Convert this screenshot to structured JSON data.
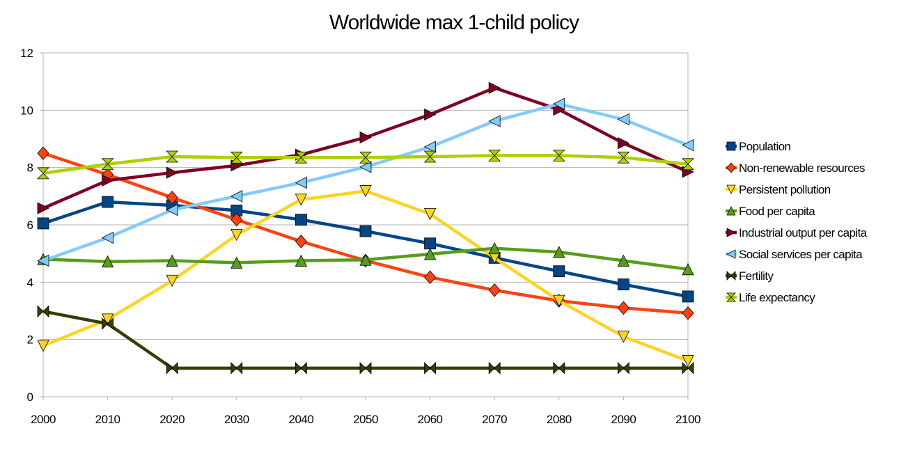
{
  "chart_data": {
    "type": "line",
    "title": "Worldwide max 1-child policy",
    "xlabel": "",
    "ylabel": "",
    "x": [
      2000,
      2010,
      2020,
      2030,
      2040,
      2050,
      2060,
      2070,
      2080,
      2090,
      2100
    ],
    "ylim": [
      0,
      12
    ],
    "yticks": [
      0,
      2,
      4,
      6,
      8,
      10,
      12
    ],
    "grid": "horizontal",
    "legend_position": "right",
    "series": [
      {
        "name": "Population",
        "color": "#004586",
        "marker": "square",
        "values": [
          6.05,
          6.8,
          6.68,
          6.5,
          6.18,
          5.78,
          5.35,
          4.85,
          4.38,
          3.92,
          3.5
        ]
      },
      {
        "name": "Non-renewable resources",
        "color": "#ff420e",
        "marker": "diamond",
        "values": [
          8.5,
          7.75,
          6.95,
          6.18,
          5.42,
          4.75,
          4.17,
          3.72,
          3.35,
          3.1,
          2.92
        ]
      },
      {
        "name": "Persistent pollution",
        "color": "#ffd320",
        "marker": "triangle-down",
        "values": [
          1.78,
          2.7,
          4.05,
          5.65,
          6.88,
          7.18,
          6.38,
          4.85,
          3.35,
          2.1,
          1.25
        ]
      },
      {
        "name": "Food per capita",
        "color": "#579d1c",
        "marker": "triangle-up",
        "values": [
          4.8,
          4.72,
          4.75,
          4.68,
          4.75,
          4.78,
          4.98,
          5.18,
          5.05,
          4.75,
          4.45
        ]
      },
      {
        "name": "Industrial output per capita",
        "color": "#7e0021",
        "marker": "triangle-right",
        "values": [
          6.58,
          7.55,
          7.82,
          8.07,
          8.45,
          9.05,
          9.85,
          10.78,
          10.02,
          8.85,
          7.85
        ]
      },
      {
        "name": "Social services per capita",
        "color": "#83caff",
        "marker": "triangle-left",
        "values": [
          4.75,
          5.55,
          6.52,
          7.0,
          7.47,
          8.02,
          8.72,
          9.62,
          10.22,
          9.68,
          8.78
        ]
      },
      {
        "name": "Fertility",
        "color": "#314004",
        "marker": "bowtie",
        "values": [
          2.98,
          2.55,
          1.0,
          1.0,
          1.0,
          1.0,
          1.0,
          1.0,
          1.0,
          1.0,
          1.0
        ]
      },
      {
        "name": "Life expectancy",
        "color": "#aecf00",
        "marker": "hourglass",
        "values": [
          7.8,
          8.12,
          8.38,
          8.35,
          8.35,
          8.35,
          8.38,
          8.42,
          8.42,
          8.35,
          8.12
        ]
      }
    ]
  }
}
